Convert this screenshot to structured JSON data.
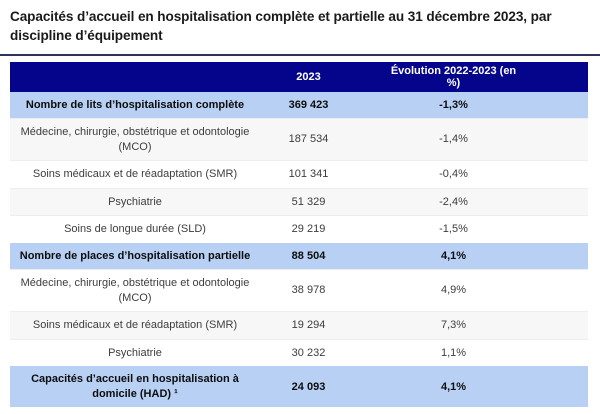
{
  "title": "Capacités d’accueil en hospitalisation complète et partielle au 31 décembre 2023, par discipline d’équipement",
  "table": {
    "columns": [
      "",
      "2023",
      "Évolution 2022-2023 (en %)"
    ],
    "rows": [
      {
        "label": "Nombre de lits d’hospitalisation complète",
        "value": "369 423",
        "evolution": "-1,3%",
        "emphasis": true
      },
      {
        "label": "Médecine, chirurgie, obstétrique et odontologie (MCO)",
        "value": "187 534",
        "evolution": "-1,4%",
        "emphasis": false
      },
      {
        "label": "Soins médicaux et de réadaptation (SMR)",
        "value": "101 341",
        "evolution": "-0,4%",
        "emphasis": false
      },
      {
        "label": "Psychiatrie",
        "value": "51 329",
        "evolution": "-2,4%",
        "emphasis": false
      },
      {
        "label": "Soins de longue durée (SLD)",
        "value": "29 219",
        "evolution": "-1,5%",
        "emphasis": false
      },
      {
        "label": "Nombre de places d’hospitalisation partielle",
        "value": "88 504",
        "evolution": "4,1%",
        "emphasis": true
      },
      {
        "label": "Médecine, chirurgie, obstétrique et odontologie (MCO)",
        "value": "38 978",
        "evolution": "4,9%",
        "emphasis": false
      },
      {
        "label": "Soins médicaux et de réadaptation (SMR)",
        "value": "19 294",
        "evolution": "7,3%",
        "emphasis": false
      },
      {
        "label": "Psychiatrie",
        "value": "30 232",
        "evolution": "1,1%",
        "emphasis": false
      },
      {
        "label": "Capacités d’accueil en hospitalisation à domicile (HAD) ¹",
        "value": "24 093",
        "evolution": "4,1%",
        "emphasis": true
      }
    ]
  },
  "colors": {
    "header_bg": "#05058c",
    "header_text": "#ffffff",
    "highlight_row_bg": "#b8d0f3",
    "gray_row_bg": "#f7f7f7",
    "divider": "#31315e"
  },
  "chart_data": {
    "type": "table",
    "title": "Capacités d’accueil en hospitalisation complète et partielle au 31 décembre 2023, par discipline d’équipement",
    "columns": [
      "",
      "2023",
      "Évolution 2022-2023 (en %)"
    ],
    "rows": [
      [
        "Nombre de lits d’hospitalisation complète",
        369423,
        -1.3
      ],
      [
        "Médecine, chirurgie, obstétrique et odontologie (MCO)",
        187534,
        -1.4
      ],
      [
        "Soins médicaux et de réadaptation (SMR)",
        101341,
        -0.4
      ],
      [
        "Psychiatrie",
        51329,
        -2.4
      ],
      [
        "Soins de longue durée (SLD)",
        29219,
        -1.5
      ],
      [
        "Nombre de places d’hospitalisation partielle",
        88504,
        4.1
      ],
      [
        "Médecine, chirurgie, obstétrique et odontologie (MCO)",
        38978,
        4.9
      ],
      [
        "Soins médicaux et de réadaptation (SMR)",
        19294,
        7.3
      ],
      [
        "Psychiatrie",
        30232,
        1.1
      ],
      [
        "Capacités d’accueil en hospitalisation à domicile (HAD)",
        24093,
        4.1
      ]
    ]
  }
}
